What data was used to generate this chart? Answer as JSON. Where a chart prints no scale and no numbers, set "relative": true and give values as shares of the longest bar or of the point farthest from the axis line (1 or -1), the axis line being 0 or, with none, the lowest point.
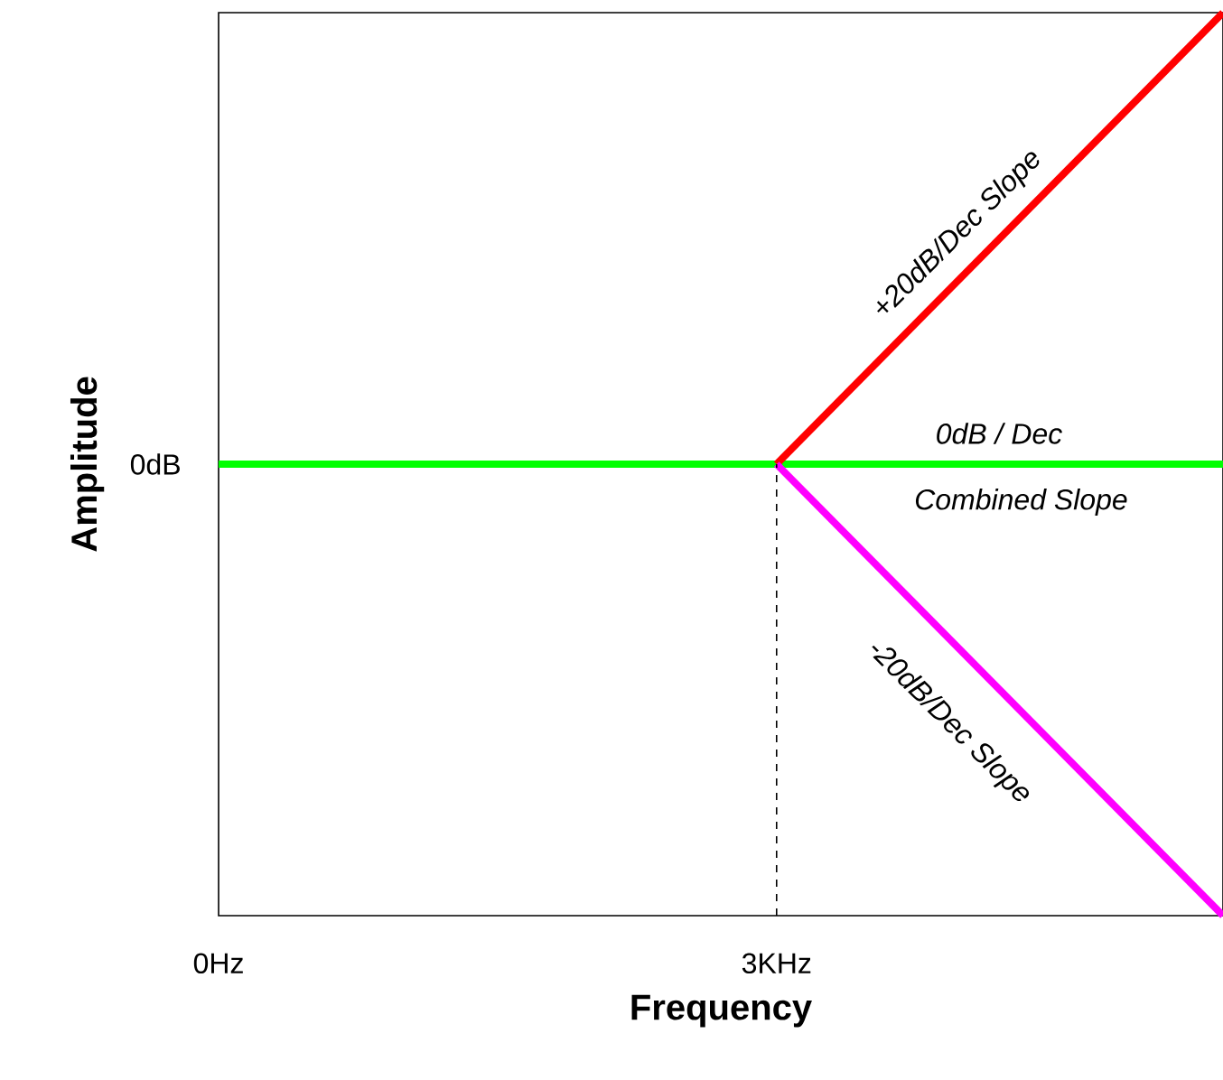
{
  "chart_data": {
    "type": "line",
    "relative": true,
    "xlabel": "Frequency",
    "ylabel": "Amplitude",
    "xlim": [
      0,
      5.4
    ],
    "xticks": [
      {
        "value": 0,
        "label": "0Hz"
      },
      {
        "value": 3,
        "label": "3KHz"
      }
    ],
    "series": [
      {
        "x": [
          0,
          5.4
        ],
        "values": [
          0.5,
          0.5
        ],
        "color": "#00ff00"
      },
      {
        "x": [
          3,
          5.4
        ],
        "values": [
          0.5,
          1
        ],
        "color": "#ff0000"
      },
      {
        "x": [
          3,
          5.4
        ],
        "values": [
          0.5,
          0
        ],
        "color": "#ff00ff"
      },
      {
        "x": [
          3,
          3
        ],
        "values": [
          0,
          0.5
        ],
        "color": "#000000",
        "line_style": "dashed"
      }
    ],
    "annotations": [
      "0dB",
      "+20dB/Dec Slope",
      "0dB / Dec",
      "Combined Slope",
      "-20dB/Dec Slope"
    ]
  }
}
